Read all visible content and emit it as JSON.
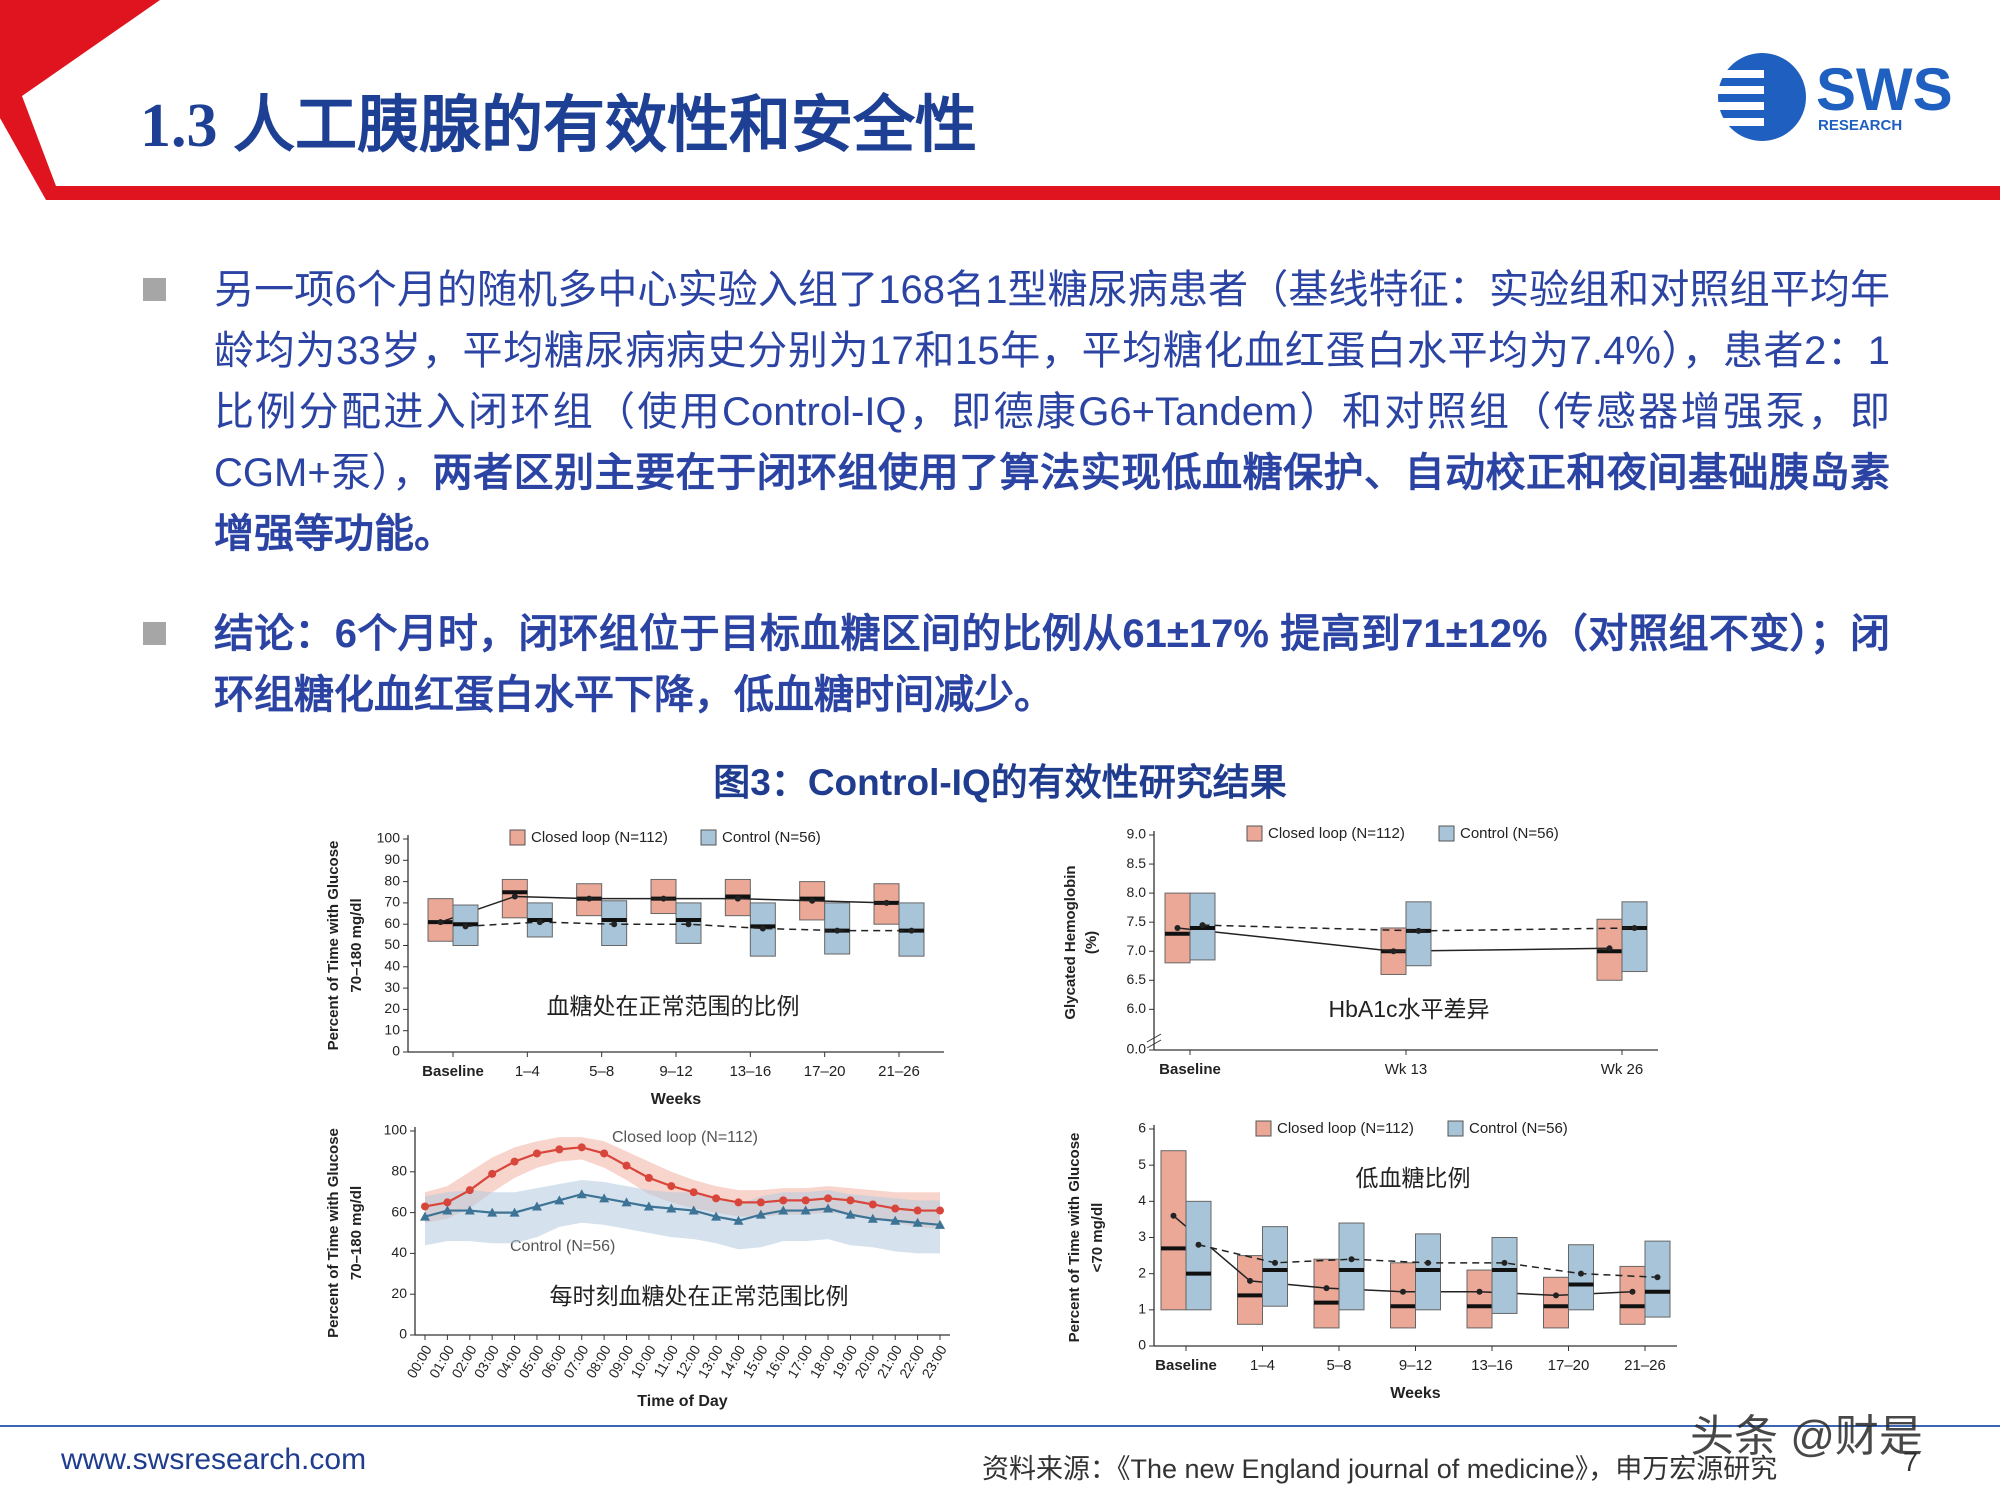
{
  "header": {
    "title": "1.3 人工胰腺的有效性和安全性",
    "logo": {
      "name": "SWS",
      "sub": "RESEARCH"
    }
  },
  "bullets": [
    {
      "text": "另一项6个月的随机多中心实验入组了168名1型糖尿病患者（基线特征：实验组和对照组平均年龄均为33岁，平均糖尿病病史分别为17和15年，平均糖化血红蛋白水平均为7.4%），患者2：1比例分配进入闭环组（使用Control-IQ，即德康G6+Tandem）和对照组（传感器增强泵，即CGM+泵），",
      "bold": "两者区别主要在于闭环组使用了算法实现低血糖保护、自动校正和夜间基础胰岛素增强等功能。"
    },
    {
      "bold": "结论：6个月时，闭环组位于目标血糖区间的比例从61±17% 提高到71±12%（对照组不变）；闭环组糖化血红蛋白水平下降，低血糖时间减少。"
    }
  ],
  "figure": {
    "caption": "图3：Control-IQ的有效性研究结果"
  },
  "chart_data": [
    {
      "type": "box",
      "ylabel": [
        "Percent of Time with Glucose",
        "70–180 mg/dl"
      ],
      "xlabel": "Weeks",
      "annotation": "血糖处在正常范围的比例",
      "categories": [
        "Baseline",
        "1–4",
        "5–8",
        "9–12",
        "13–16",
        "17–20",
        "21–26"
      ],
      "ylim": [
        0,
        100
      ],
      "yticks": [
        0,
        10,
        20,
        30,
        40,
        50,
        60,
        70,
        80,
        90,
        100
      ],
      "legend": "top",
      "series": [
        {
          "name": "Closed loop (N=112)",
          "color": "#eba897",
          "line": "solid",
          "q1": [
            52,
            63,
            64,
            65,
            64,
            62,
            60
          ],
          "q3": [
            72,
            81,
            79,
            81,
            81,
            80,
            79
          ],
          "median": [
            61,
            75,
            72,
            72,
            73,
            72,
            70
          ],
          "mean": [
            61,
            73,
            72,
            72,
            72,
            71,
            70
          ]
        },
        {
          "name": "Control (N=56)",
          "color": "#a8c4d8",
          "line": "dashed",
          "q1": [
            50,
            54,
            50,
            51,
            45,
            46,
            45
          ],
          "q3": [
            69,
            70,
            71,
            70,
            70,
            70,
            70
          ],
          "median": [
            60,
            62,
            62,
            62,
            59,
            57,
            57
          ],
          "mean": [
            59,
            61,
            60,
            60,
            58,
            57,
            57
          ]
        }
      ]
    },
    {
      "type": "box",
      "ylabel": [
        "Glycated Hemoglobin",
        "(%)"
      ],
      "annotation": "HbA1c水平差异",
      "categories": [
        "Baseline",
        "Wk 13",
        "Wk 26"
      ],
      "ylim": [
        5.3,
        9.0
      ],
      "axis_break": true,
      "yticks": [
        {
          "value": 0,
          "label": "0.0"
        },
        {
          "value": 6,
          "label": "6.0"
        },
        6.5,
        {
          "value": 7,
          "label": "7.0"
        },
        7.5,
        {
          "value": 8,
          "label": "8.0"
        },
        8.5,
        {
          "value": 9,
          "label": "9.0"
        }
      ],
      "legend": "top",
      "series": [
        {
          "name": "Closed loop (N=112)",
          "color": "#eba897",
          "line": "solid",
          "q1": [
            6.8,
            6.6,
            6.5
          ],
          "q3": [
            8.0,
            7.4,
            7.55
          ],
          "median": [
            7.3,
            7.0,
            7.0
          ],
          "mean": [
            7.4,
            7.0,
            7.05
          ]
        },
        {
          "name": "Control (N=56)",
          "color": "#a8c4d8",
          "line": "dashed",
          "q1": [
            6.85,
            6.75,
            6.65
          ],
          "q3": [
            8.0,
            7.85,
            7.85
          ],
          "median": [
            7.4,
            7.35,
            7.4
          ],
          "mean": [
            7.45,
            7.35,
            7.4
          ]
        }
      ]
    },
    {
      "type": "line",
      "ylabel": [
        "Percent of Time with Glucose",
        "70–180 mg/dl"
      ],
      "xlabel": "Time of Day",
      "annotation": "每时刻血糖处在正常范围比例",
      "categories": [
        "00:00",
        "01:00",
        "02:00",
        "03:00",
        "04:00",
        "05:00",
        "06:00",
        "07:00",
        "08:00",
        "09:00",
        "10:00",
        "11:00",
        "12:00",
        "13:00",
        "14:00",
        "15:00",
        "16:00",
        "17:00",
        "18:00",
        "19:00",
        "20:00",
        "21:00",
        "22:00",
        "23:00"
      ],
      "ylim": [
        0,
        100
      ],
      "yticks": [
        0,
        20,
        40,
        60,
        80,
        100
      ],
      "legend": "inline",
      "series": [
        {
          "name": "Closed loop (N=112)",
          "color": "#d8453b",
          "band_color": "#f2b3a3",
          "marker": "circle",
          "values": [
            63,
            65,
            71,
            79,
            85,
            89,
            91,
            92,
            89,
            83,
            77,
            73,
            70,
            67,
            65,
            65,
            66,
            66,
            67,
            66,
            64,
            62,
            61,
            61
          ],
          "upper": [
            70,
            73,
            80,
            87,
            92,
            95,
            97,
            97,
            95,
            90,
            85,
            80,
            76,
            73,
            71,
            71,
            72,
            72,
            73,
            72,
            71,
            70,
            70,
            70
          ],
          "lower": [
            55,
            57,
            62,
            70,
            77,
            82,
            85,
            86,
            82,
            76,
            69,
            65,
            62,
            60,
            58,
            58,
            59,
            59,
            60,
            59,
            57,
            55,
            53,
            52
          ]
        },
        {
          "name": "Control (N=56)",
          "color": "#3d7394",
          "band_color": "#b3cbde",
          "marker": "triangle",
          "values": [
            58,
            61,
            61,
            60,
            60,
            63,
            66,
            69,
            67,
            65,
            63,
            62,
            61,
            58,
            56,
            59,
            61,
            61,
            62,
            59,
            57,
            56,
            55,
            54
          ],
          "upper": [
            68,
            70,
            71,
            70,
            70,
            72,
            74,
            76,
            75,
            73,
            71,
            70,
            70,
            67,
            64,
            68,
            70,
            70,
            71,
            69,
            68,
            67,
            66,
            66
          ],
          "lower": [
            44,
            46,
            46,
            45,
            45,
            48,
            53,
            55,
            54,
            52,
            50,
            48,
            47,
            45,
            42,
            43,
            46,
            46,
            47,
            44,
            43,
            41,
            40,
            40
          ]
        }
      ]
    },
    {
      "type": "box",
      "ylabel": [
        "Percent of Time with Glucose",
        "<70 mg/dl"
      ],
      "xlabel": "Weeks",
      "annotation": "低血糖比例",
      "categories": [
        "Baseline",
        "1–4",
        "5–8",
        "9–12",
        "13–16",
        "17–20",
        "21–26"
      ],
      "ylim": [
        0,
        6
      ],
      "yticks": [
        0,
        1,
        2,
        3,
        4,
        5,
        6
      ],
      "legend": "top",
      "series": [
        {
          "name": "Closed loop (N=112)",
          "color": "#eba897",
          "line": "solid",
          "q1": [
            1.0,
            0.6,
            0.5,
            0.5,
            0.5,
            0.5,
            0.6
          ],
          "q3": [
            5.4,
            2.5,
            2.4,
            2.3,
            2.1,
            1.9,
            2.2
          ],
          "median": [
            2.7,
            1.4,
            1.2,
            1.1,
            1.1,
            1.1,
            1.1
          ],
          "mean": [
            3.6,
            1.8,
            1.6,
            1.5,
            1.5,
            1.4,
            1.5
          ]
        },
        {
          "name": "Control (N=56)",
          "color": "#a8c4d8",
          "line": "dashed",
          "q1": [
            1.0,
            1.1,
            1.0,
            1.0,
            0.9,
            1.0,
            0.8
          ],
          "q3": [
            4.0,
            3.3,
            3.4,
            3.1,
            3.0,
            2.8,
            2.9
          ],
          "median": [
            2.0,
            2.1,
            2.1,
            2.1,
            2.1,
            1.7,
            1.5
          ],
          "mean": [
            2.8,
            2.3,
            2.4,
            2.3,
            2.3,
            2.0,
            1.9
          ]
        }
      ]
    }
  ],
  "footer": {
    "url": "www.swsresearch.com",
    "source": "资料来源：《The new England journal of medicine》，申万宏源研究",
    "page": 7,
    "watermark": "头条 @财是"
  }
}
